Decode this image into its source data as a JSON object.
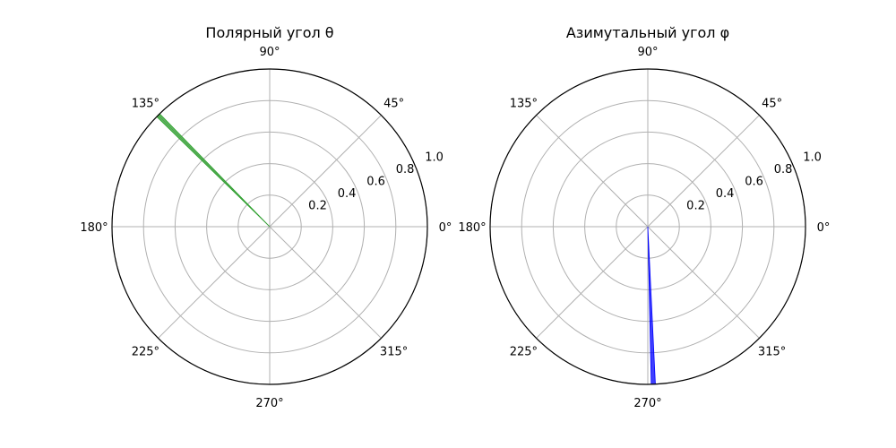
{
  "chart_data": [
    {
      "type": "polar_bar",
      "title": "Полярный угол θ",
      "theta_unit": "degrees",
      "theta_ticks": [
        "0°",
        "45°",
        "90°",
        "135°",
        "180°",
        "225°",
        "270°",
        "315°"
      ],
      "r_ticks": [
        "0.2",
        "0.4",
        "0.6",
        "0.8",
        "1.0"
      ],
      "rlim": [
        0,
        1.0
      ],
      "grid": true,
      "bars": [
        {
          "theta": 135,
          "width": 1.5,
          "r": 1.0,
          "color": "#2ca02c"
        }
      ]
    },
    {
      "type": "polar_bar",
      "title": "Азимутальный угол φ",
      "theta_unit": "degrees",
      "theta_ticks": [
        "0°",
        "45°",
        "90°",
        "135°",
        "180°",
        "225°",
        "270°",
        "315°"
      ],
      "r_ticks": [
        "0.2",
        "0.4",
        "0.6",
        "0.8",
        "1.0"
      ],
      "rlim": [
        0,
        1.0
      ],
      "grid": true,
      "bars": [
        {
          "theta": 272,
          "width": 1.5,
          "r": 1.0,
          "color": "#0000ff"
        }
      ]
    }
  ]
}
